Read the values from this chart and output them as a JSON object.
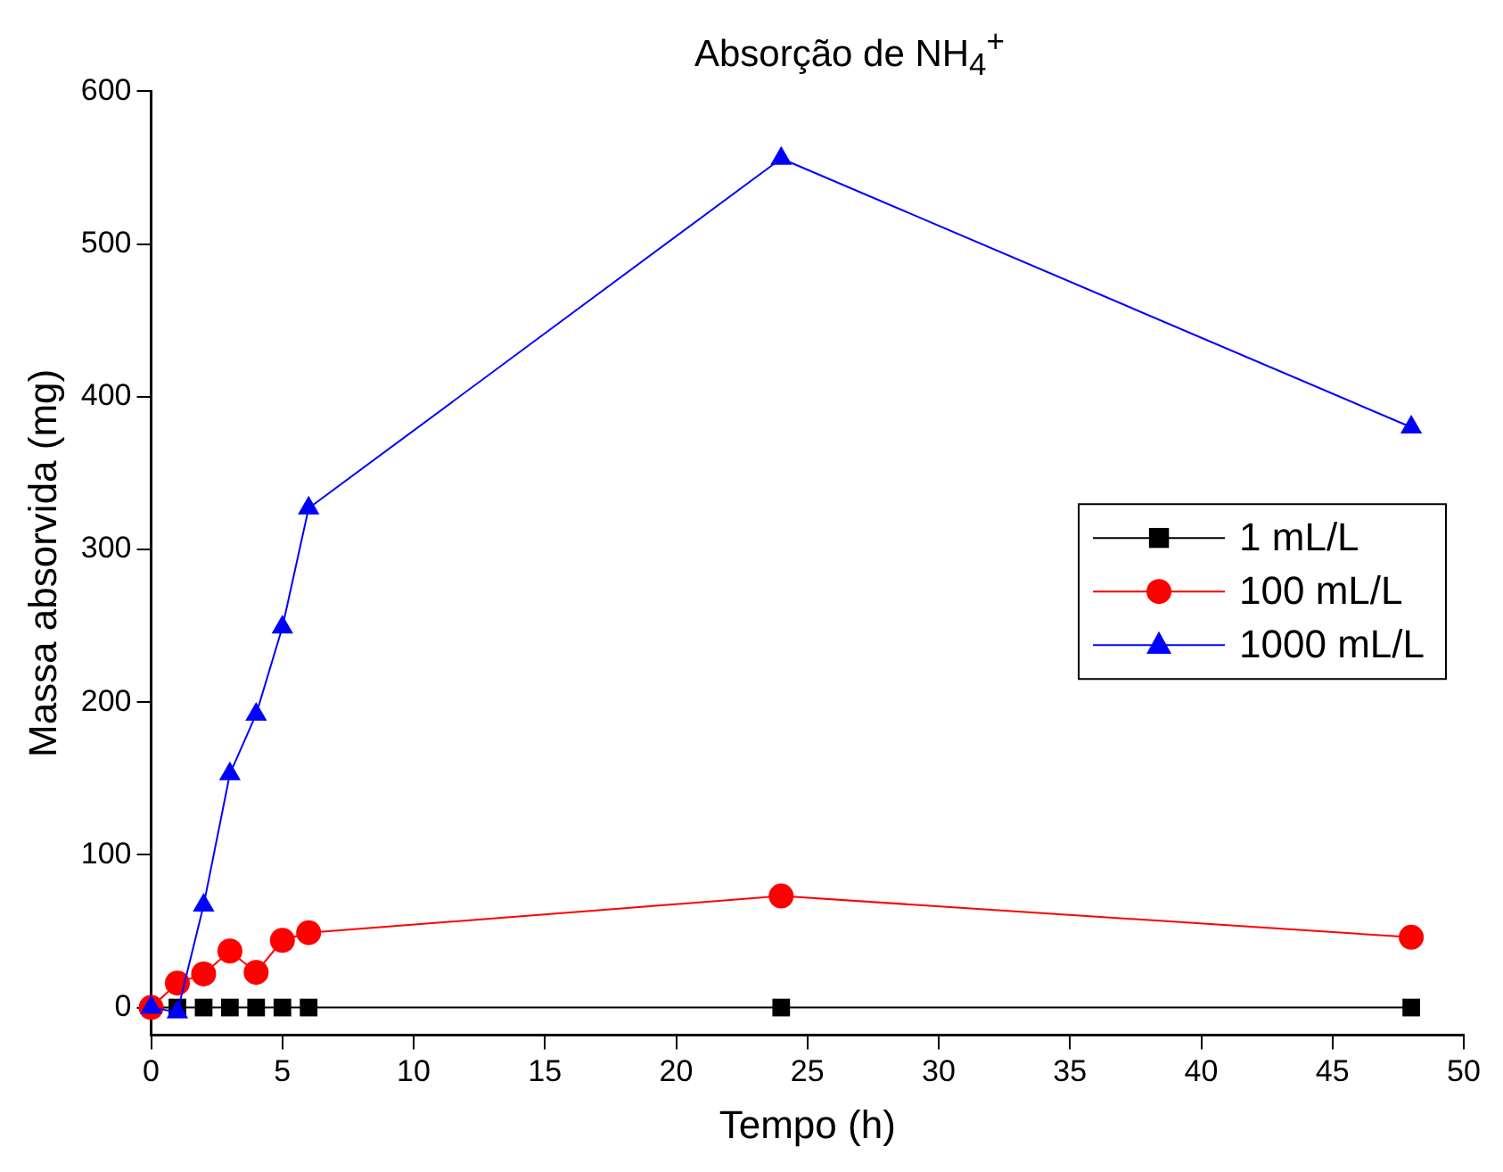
{
  "chart_data": {
    "type": "line",
    "title": "Absorção de NH$_{4}$$^{+}$",
    "xlabel": "Tempo (h)",
    "ylabel": "Massa absorvida (mg)",
    "xlim": [
      0,
      50
    ],
    "xticks": [
      0,
      5,
      10,
      15,
      20,
      25,
      30,
      35,
      40,
      45,
      50
    ],
    "ylim": [
      -18,
      600
    ],
    "yticks": [
      0,
      100,
      200,
      300,
      400,
      500,
      600
    ],
    "grid": false,
    "legend": "right",
    "line_style": "solid",
    "series": [
      {
        "name": "1 mL/L",
        "color": "#000000",
        "marker": "square",
        "x": [
          0,
          1,
          2,
          3,
          4,
          5,
          6,
          24,
          48
        ],
        "values": [
          0,
          0,
          0,
          0,
          0,
          0,
          0,
          0,
          0
        ]
      },
      {
        "name": "100 mL/L",
        "color": "#ff0000",
        "marker": "circle",
        "x": [
          0,
          1,
          2,
          3,
          4,
          5,
          6,
          24,
          48
        ],
        "values": [
          0,
          16,
          22,
          37,
          23,
          44,
          49,
          73,
          46
        ]
      },
      {
        "name": "1000 mL/L",
        "color": "#0000ff",
        "marker": "triangle",
        "x": [
          0,
          1,
          2,
          3,
          4,
          5,
          6,
          24,
          48
        ],
        "values": [
          0,
          -3,
          67,
          153,
          192,
          249,
          327,
          556,
          380
        ]
      }
    ]
  }
}
